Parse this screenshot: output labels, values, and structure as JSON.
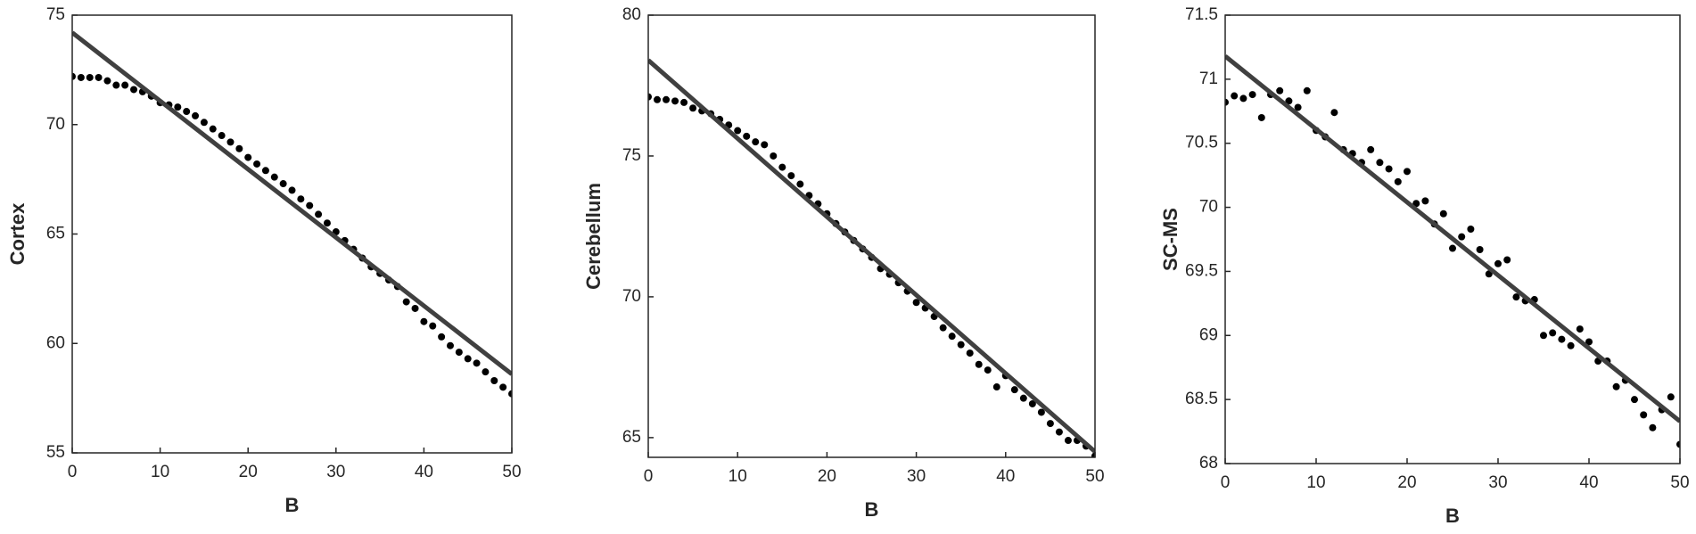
{
  "chart_data": [
    {
      "type": "scatter",
      "xlabel": "B",
      "ylabel": "Cortex",
      "x": [
        0,
        1,
        2,
        3,
        4,
        5,
        6,
        7,
        8,
        9,
        10,
        11,
        12,
        13,
        14,
        15,
        16,
        17,
        18,
        19,
        20,
        21,
        22,
        23,
        24,
        25,
        26,
        27,
        28,
        29,
        30,
        31,
        32,
        33,
        34,
        35,
        36,
        37,
        38,
        39,
        40,
        41,
        42,
        43,
        44,
        45,
        46,
        47,
        48,
        49,
        50
      ],
      "values": [
        72.2,
        72.15,
        72.15,
        72.15,
        72.0,
        71.8,
        71.8,
        71.6,
        71.5,
        71.3,
        71.0,
        70.9,
        70.8,
        70.6,
        70.4,
        70.1,
        69.8,
        69.5,
        69.2,
        68.9,
        68.5,
        68.2,
        67.9,
        67.6,
        67.3,
        67.0,
        66.6,
        66.3,
        65.9,
        65.5,
        65.1,
        64.7,
        64.3,
        63.9,
        63.5,
        63.2,
        62.9,
        62.6,
        61.9,
        61.6,
        61.0,
        60.8,
        60.3,
        59.9,
        59.6,
        59.3,
        59.1,
        58.7,
        58.3,
        58.0,
        57.7
      ],
      "color": "#000000",
      "line": {
        "x": [
          0,
          50
        ],
        "values": [
          74.2,
          58.6
        ],
        "color": "#404040"
      },
      "xlim": [
        0,
        50
      ],
      "ylim": [
        55,
        75
      ],
      "xticks": [
        0,
        10,
        20,
        30,
        40,
        50
      ],
      "yticks": [
        55,
        60,
        65,
        70,
        75
      ]
    },
    {
      "type": "scatter",
      "xlabel": "B",
      "ylabel": "Cerebellum",
      "x": [
        0,
        1,
        2,
        3,
        4,
        5,
        6,
        7,
        8,
        9,
        10,
        11,
        12,
        13,
        14,
        15,
        16,
        17,
        18,
        19,
        20,
        21,
        22,
        23,
        24,
        25,
        26,
        27,
        28,
        29,
        30,
        31,
        32,
        33,
        34,
        35,
        36,
        37,
        38,
        39,
        40,
        41,
        42,
        43,
        44,
        45,
        46,
        47,
        48,
        49,
        50
      ],
      "values": [
        77.1,
        77.0,
        77.0,
        76.95,
        76.9,
        76.7,
        76.6,
        76.5,
        76.3,
        76.1,
        75.9,
        75.7,
        75.5,
        75.4,
        75.0,
        74.6,
        74.3,
        74.0,
        73.6,
        73.3,
        72.95,
        72.6,
        72.3,
        72.0,
        71.7,
        71.4,
        71.0,
        70.8,
        70.5,
        70.2,
        69.8,
        69.6,
        69.3,
        68.9,
        68.6,
        68.3,
        68.0,
        67.6,
        67.4,
        66.8,
        67.2,
        66.7,
        66.4,
        66.2,
        65.9,
        65.5,
        65.2,
        64.9,
        64.9,
        64.7,
        64.35
      ],
      "color": "#000000",
      "line": {
        "x": [
          0,
          50
        ],
        "values": [
          78.4,
          64.5
        ],
        "color": "#404040"
      },
      "xlim": [
        0,
        50
      ],
      "ylim": [
        64.3,
        80
      ],
      "xticks": [
        0,
        10,
        20,
        30,
        40,
        50
      ],
      "yticks": [
        65,
        70,
        75,
        80
      ]
    },
    {
      "type": "scatter",
      "xlabel": "B",
      "ylabel": "SC-MS",
      "x": [
        0,
        1,
        2,
        3,
        4,
        5,
        6,
        7,
        8,
        9,
        10,
        11,
        12,
        13,
        14,
        15,
        16,
        17,
        18,
        19,
        20,
        21,
        22,
        23,
        24,
        25,
        26,
        27,
        28,
        29,
        30,
        31,
        32,
        33,
        34,
        35,
        36,
        37,
        38,
        39,
        40,
        41,
        42,
        43,
        44,
        45,
        46,
        47,
        48,
        49,
        50
      ],
      "values": [
        70.82,
        70.87,
        70.85,
        70.88,
        70.7,
        70.88,
        70.91,
        70.83,
        70.78,
        70.91,
        70.6,
        70.55,
        70.74,
        70.45,
        70.42,
        70.35,
        70.45,
        70.35,
        70.3,
        70.2,
        70.28,
        70.03,
        70.05,
        69.87,
        69.95,
        69.68,
        69.77,
        69.83,
        69.67,
        69.48,
        69.56,
        69.59,
        69.3,
        69.27,
        69.28,
        69.0,
        69.02,
        68.97,
        68.92,
        69.05,
        68.95,
        68.8,
        68.8,
        68.6,
        68.65,
        68.5,
        68.38,
        68.28,
        68.42,
        68.52,
        68.15
      ],
      "color": "#000000",
      "line": {
        "x": [
          0,
          50
        ],
        "values": [
          71.18,
          68.33
        ],
        "color": "#404040"
      },
      "xlim": [
        0,
        50
      ],
      "ylim": [
        68,
        71.5
      ],
      "xticks": [
        0,
        10,
        20,
        30,
        40,
        50
      ],
      "yticks": [
        68,
        68.5,
        69,
        69.5,
        70,
        70.5,
        71,
        71.5
      ]
    }
  ]
}
